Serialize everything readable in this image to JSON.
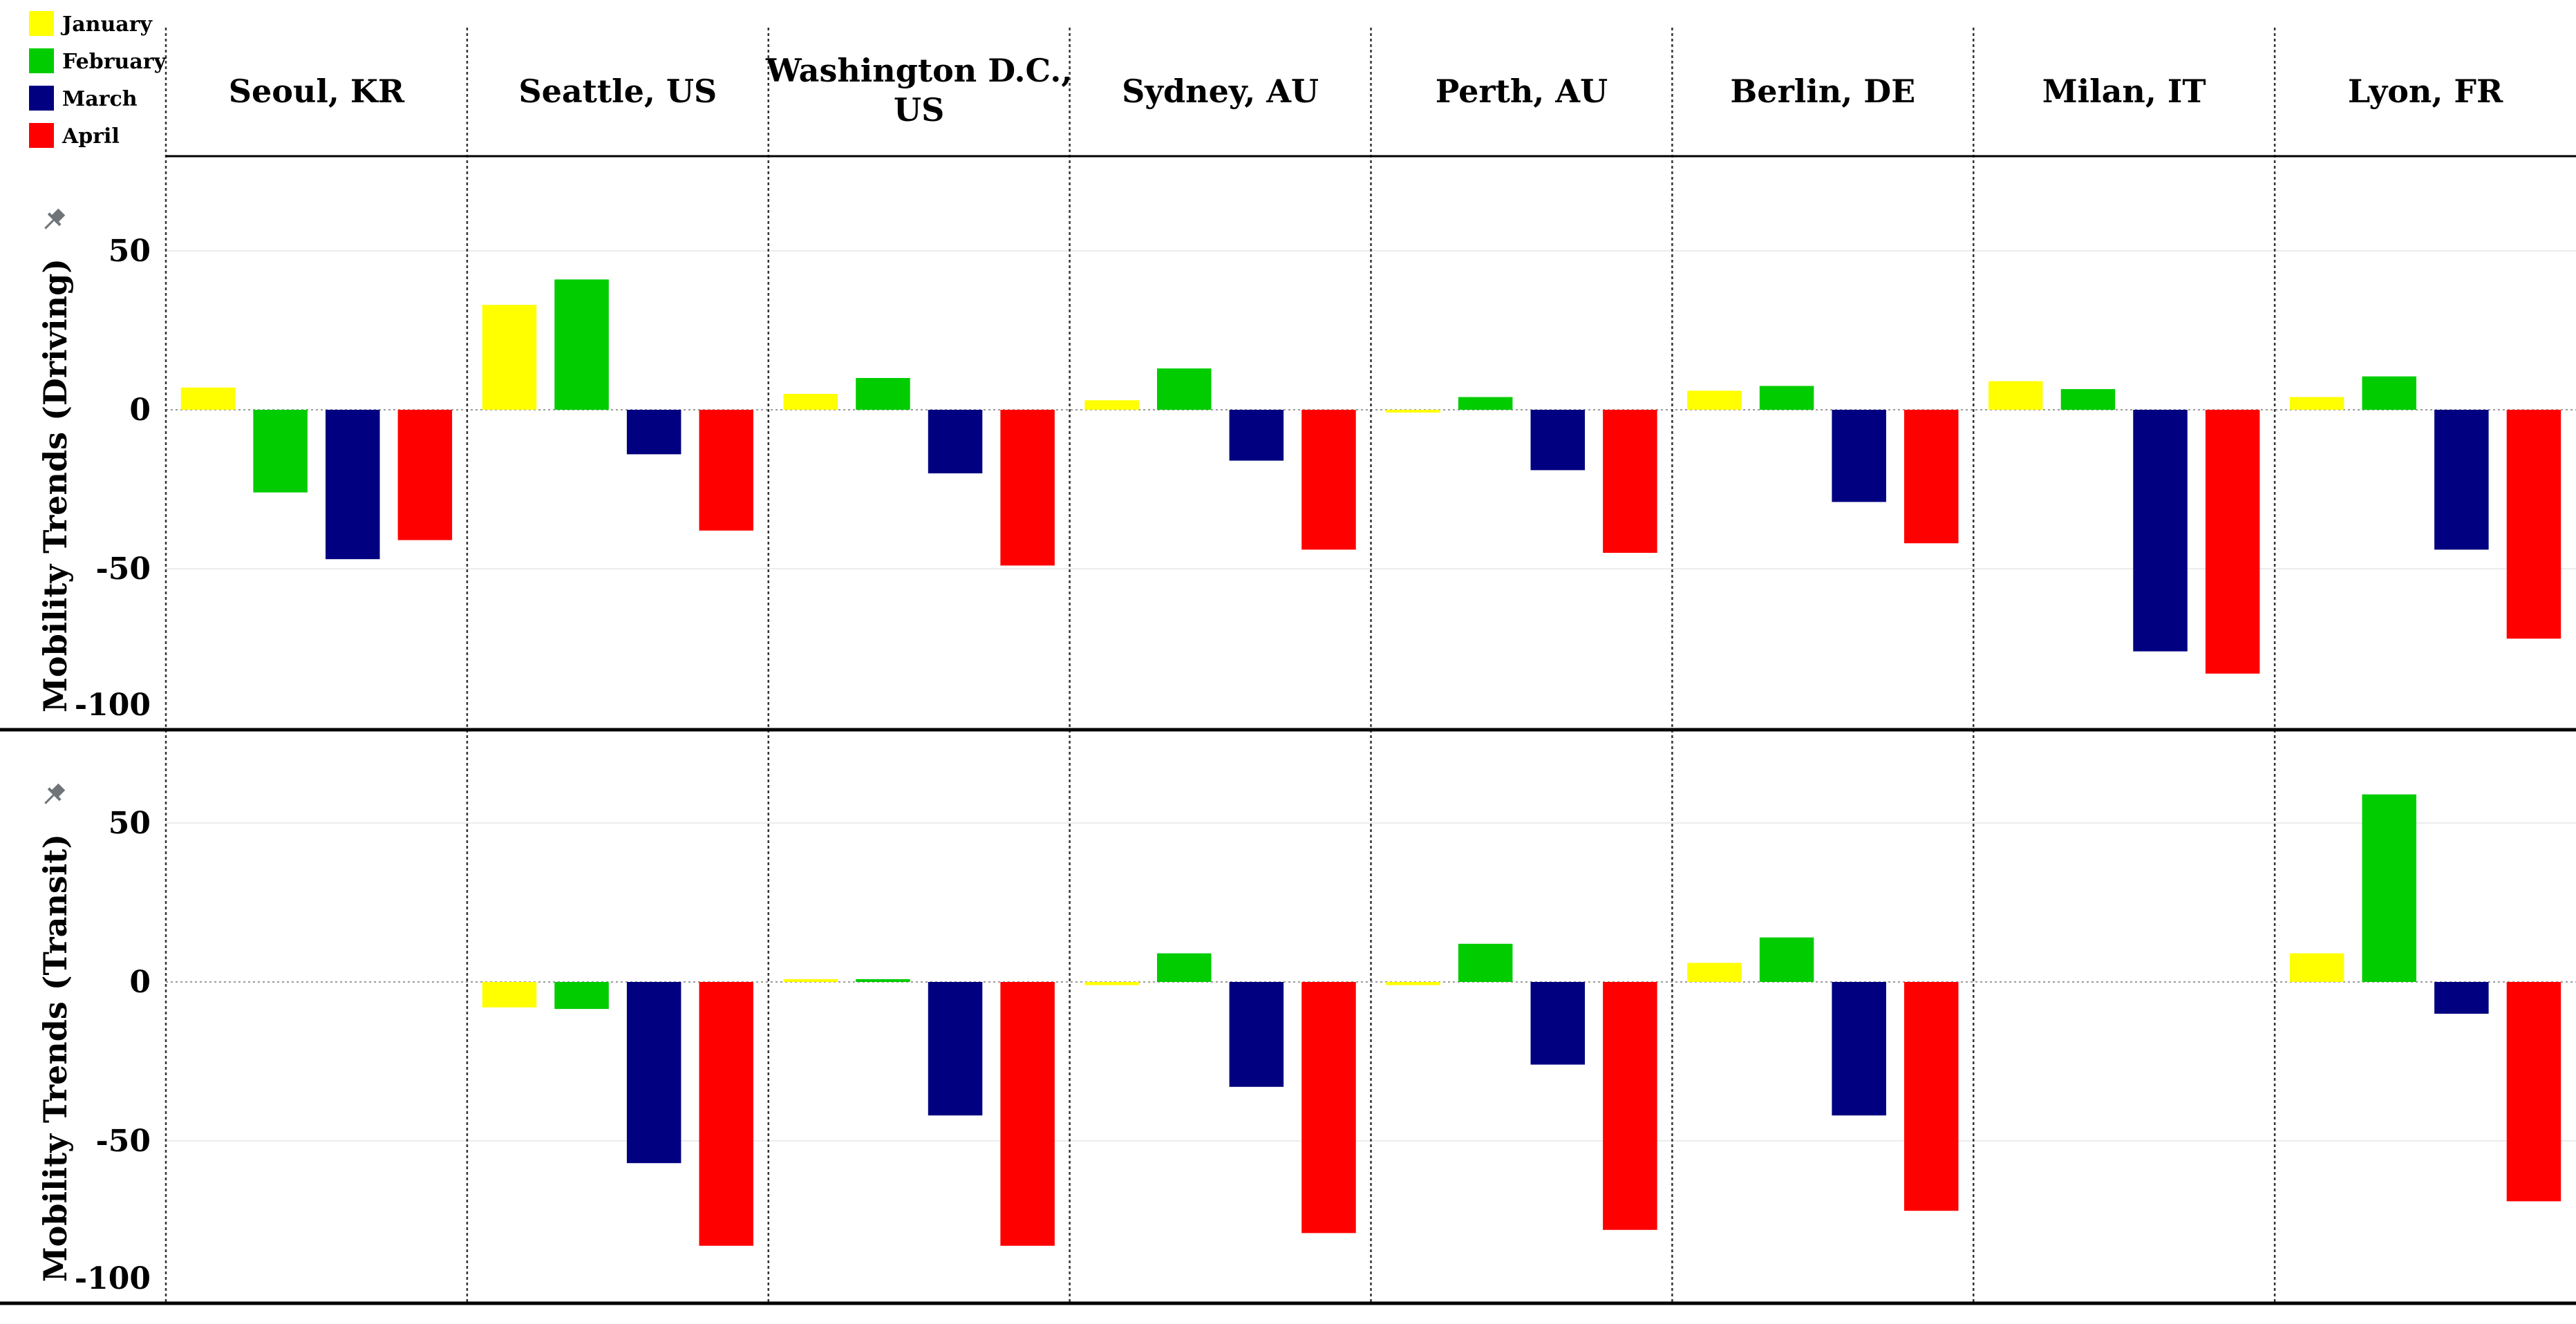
{
  "legend": {
    "items": [
      {
        "label": "January",
        "color": "#FFFF00"
      },
      {
        "label": "February",
        "color": "#00CC00"
      },
      {
        "label": "March",
        "color": "#000080"
      },
      {
        "label": "April",
        "color": "#FF0000"
      }
    ]
  },
  "chart_data": {
    "type": "bar",
    "categories": [
      "Seoul, KR",
      "Seattle, US",
      "Washington D.C., US",
      "Sydney, AU",
      "Perth, AU",
      "Berlin, DE",
      "Milan, IT",
      "Lyon, FR"
    ],
    "series_names": [
      "January",
      "February",
      "March",
      "April"
    ],
    "panels": [
      {
        "ylabel": "Mobility Trends (Driving)",
        "ylim": [
          -100,
          75
        ],
        "yticks": [
          50,
          0,
          -50,
          -100
        ],
        "values": [
          [
            7,
            -26,
            -47,
            -41
          ],
          [
            33,
            41,
            -14,
            -38
          ],
          [
            5,
            10,
            -20,
            -49
          ],
          [
            3,
            13,
            -16,
            -44
          ],
          [
            -0.5,
            4,
            -19,
            -45
          ],
          [
            6,
            7.5,
            -29,
            -42
          ],
          [
            9,
            6.5,
            -76,
            -83
          ],
          [
            4,
            10.5,
            -44,
            -72
          ]
        ]
      },
      {
        "ylabel": "Mobility Trends (Transit)",
        "ylim": [
          -100,
          75
        ],
        "yticks": [
          50,
          0,
          -50,
          -100
        ],
        "values": [
          [
            null,
            null,
            null,
            null
          ],
          [
            -8,
            -8.5,
            -57,
            -83
          ],
          [
            0.8,
            0.8,
            -42,
            -83
          ],
          [
            -1,
            9,
            -33,
            -79
          ],
          [
            -1,
            12,
            -26,
            -78
          ],
          [
            6,
            14,
            -42,
            -72
          ],
          [
            null,
            null,
            null,
            null
          ],
          [
            9,
            59,
            -10,
            -69
          ]
        ]
      }
    ]
  }
}
